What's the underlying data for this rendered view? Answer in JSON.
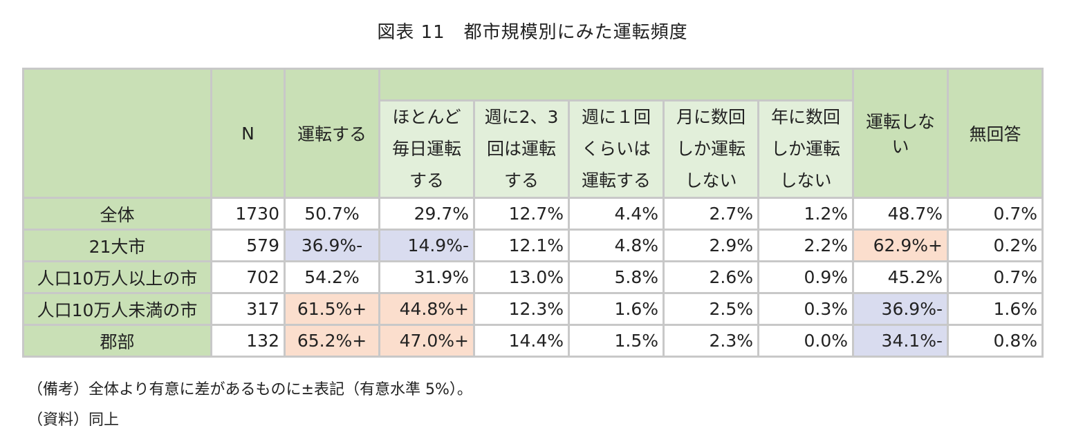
{
  "title": "図表 11　都市規模別にみた運転頻度",
  "headers": {
    "n": "N",
    "drive": "運転する",
    "sub1_l1": "ほとんど",
    "sub1_l2": "毎日運転",
    "sub1_l3": "する",
    "sub2_l1": "週に2、3",
    "sub2_l2": "回は運転",
    "sub2_l3": "する",
    "sub3_l1": "週に１回",
    "sub3_l2": "くらいは",
    "sub3_l3": "運転する",
    "sub4_l1": "月に数回",
    "sub4_l2": "しか運転",
    "sub4_l3": "しない",
    "sub5_l1": "年に数回",
    "sub5_l2": "しか運転",
    "sub5_l3": "しない",
    "nodrive_l1": "運転しな",
    "nodrive_l2": "い",
    "noanswer": "無回答"
  },
  "rows": [
    {
      "label": "全体",
      "n": "1730",
      "drive": "50.7%",
      "daily": "29.7%",
      "w23": "12.7%",
      "w1": "4.4%",
      "month": "2.7%",
      "year": "1.2%",
      "nodrive": "48.7%",
      "noans": "0.7%"
    },
    {
      "label": "21大市",
      "n": "579",
      "drive": "36.9%-",
      "daily": "14.9%-",
      "w23": "12.1%",
      "w1": "4.8%",
      "month": "2.9%",
      "year": "2.2%",
      "nodrive": "62.9%+",
      "noans": "0.2%"
    },
    {
      "label": "人口10万人以上の市",
      "n": "702",
      "drive": "54.2%",
      "daily": "31.9%",
      "w23": "13.0%",
      "w1": "5.8%",
      "month": "2.6%",
      "year": "0.9%",
      "nodrive": "45.2%",
      "noans": "0.7%"
    },
    {
      "label": "人口10万人未満の市",
      "n": "317",
      "drive": "61.5%+",
      "daily": "44.8%+",
      "w23": "12.3%",
      "w1": "1.6%",
      "month": "2.5%",
      "year": "0.3%",
      "nodrive": "36.9%-",
      "noans": "1.6%"
    },
    {
      "label": "郡部",
      "n": "132",
      "drive": "65.2%+",
      "daily": "47.0%+",
      "w23": "14.4%",
      "w1": "1.5%",
      "month": "2.3%",
      "year": "0.0%",
      "nodrive": "34.1%-",
      "noans": "0.8%"
    }
  ],
  "notes": {
    "remark": "（備考）全体より有意に差があるものに±表記（有意水準 5%）。",
    "source": "（資料）同上"
  },
  "colors": {
    "header_green": "#c9e0b6",
    "subheader_green": "#e2efda",
    "significant_minus": "#d9dcef",
    "significant_plus": "#fbdecd"
  }
}
